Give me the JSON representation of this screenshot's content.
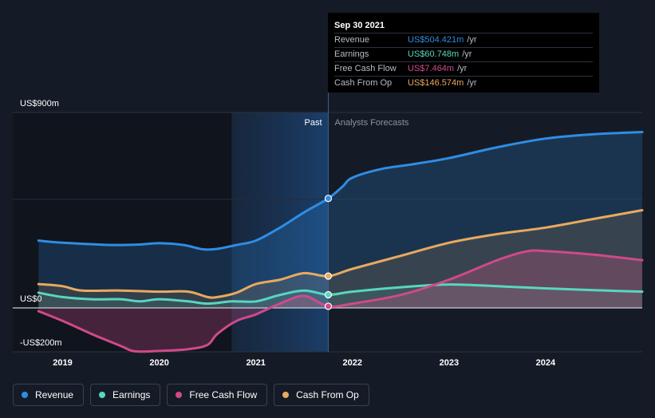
{
  "chart_data": {
    "type": "area",
    "title": "",
    "ylim": [
      -200,
      900
    ],
    "y_labels": {
      "top": "US$900m",
      "zero": "US$0",
      "bottom": "-US$200m"
    },
    "x_ticks": [
      "2019",
      "2020",
      "2021",
      "2022",
      "2023",
      "2024"
    ],
    "x_tick_values": [
      2019.0,
      2020.0,
      2021.0,
      2022.0,
      2023.0,
      2024.0
    ],
    "xlim": [
      2018.5,
      2025.0
    ],
    "past_label": "Past",
    "forecast_label": "Analysts Forecasts",
    "divider_x": 2021.75,
    "highlight_from": 2020.75,
    "series": [
      {
        "name": "Revenue",
        "color": "#2f8de4",
        "points": [
          [
            2018.75,
            310
          ],
          [
            2019.0,
            300
          ],
          [
            2019.5,
            290
          ],
          [
            2019.8,
            292
          ],
          [
            2020.0,
            298
          ],
          [
            2020.25,
            290
          ],
          [
            2020.45,
            270
          ],
          [
            2020.6,
            272
          ],
          [
            2020.8,
            290
          ],
          [
            2021.0,
            310
          ],
          [
            2021.25,
            370
          ],
          [
            2021.5,
            440
          ],
          [
            2021.75,
            504.4
          ],
          [
            2021.9,
            560
          ],
          [
            2022.0,
            600
          ],
          [
            2022.3,
            640
          ],
          [
            2022.6,
            660
          ],
          [
            2023.0,
            690
          ],
          [
            2023.5,
            740
          ],
          [
            2024.0,
            780
          ],
          [
            2024.5,
            800
          ],
          [
            2025.0,
            810
          ]
        ]
      },
      {
        "name": "Earnings",
        "color": "#58d6c0",
        "points": [
          [
            2018.75,
            70
          ],
          [
            2019.0,
            50
          ],
          [
            2019.3,
            40
          ],
          [
            2019.6,
            40
          ],
          [
            2019.8,
            30
          ],
          [
            2020.0,
            40
          ],
          [
            2020.3,
            30
          ],
          [
            2020.5,
            20
          ],
          [
            2020.75,
            30
          ],
          [
            2021.0,
            30
          ],
          [
            2021.25,
            60
          ],
          [
            2021.5,
            80
          ],
          [
            2021.75,
            60.7
          ],
          [
            2022.0,
            75
          ],
          [
            2022.5,
            95
          ],
          [
            2023.0,
            108
          ],
          [
            2023.5,
            100
          ],
          [
            2024.0,
            90
          ],
          [
            2024.5,
            82
          ],
          [
            2025.0,
            75
          ]
        ]
      },
      {
        "name": "Free Cash Flow",
        "color": "#cf4a89",
        "points": [
          [
            2018.75,
            -15
          ],
          [
            2019.0,
            -60
          ],
          [
            2019.3,
            -120
          ],
          [
            2019.6,
            -175
          ],
          [
            2019.75,
            -200
          ],
          [
            2020.0,
            -198
          ],
          [
            2020.3,
            -190
          ],
          [
            2020.5,
            -170
          ],
          [
            2020.6,
            -120
          ],
          [
            2020.8,
            -60
          ],
          [
            2021.0,
            -30
          ],
          [
            2021.25,
            20
          ],
          [
            2021.5,
            55
          ],
          [
            2021.75,
            7.5
          ],
          [
            2022.0,
            20
          ],
          [
            2022.5,
            60
          ],
          [
            2023.0,
            130
          ],
          [
            2023.5,
            220
          ],
          [
            2023.8,
            260
          ],
          [
            2024.0,
            262
          ],
          [
            2024.5,
            245
          ],
          [
            2025.0,
            220
          ]
        ]
      },
      {
        "name": "Cash From Op",
        "color": "#e9a95e",
        "points": [
          [
            2018.75,
            110
          ],
          [
            2019.0,
            100
          ],
          [
            2019.2,
            80
          ],
          [
            2019.6,
            80
          ],
          [
            2020.0,
            75
          ],
          [
            2020.3,
            75
          ],
          [
            2020.5,
            50
          ],
          [
            2020.6,
            50
          ],
          [
            2020.8,
            70
          ],
          [
            2021.0,
            110
          ],
          [
            2021.25,
            130
          ],
          [
            2021.5,
            160
          ],
          [
            2021.75,
            146.6
          ],
          [
            2022.0,
            180
          ],
          [
            2022.5,
            240
          ],
          [
            2023.0,
            300
          ],
          [
            2023.5,
            340
          ],
          [
            2024.0,
            370
          ],
          [
            2024.5,
            410
          ],
          [
            2025.0,
            450
          ]
        ]
      }
    ]
  },
  "tooltip": {
    "date": "Sep 30 2021",
    "rows": [
      {
        "label": "Revenue",
        "value": "US$504.421m",
        "unit": "/yr",
        "color": "#2f8de4"
      },
      {
        "label": "Earnings",
        "value": "US$60.748m",
        "unit": "/yr",
        "color": "#58d6c0"
      },
      {
        "label": "Free Cash Flow",
        "value": "US$7.464m",
        "unit": "/yr",
        "color": "#cf4a89"
      },
      {
        "label": "Cash From Op",
        "value": "US$146.574m",
        "unit": "/yr",
        "color": "#e9a95e"
      }
    ]
  },
  "legend": [
    {
      "label": "Revenue",
      "color": "#2f8de4"
    },
    {
      "label": "Earnings",
      "color": "#58d6c0"
    },
    {
      "label": "Free Cash Flow",
      "color": "#cf4a89"
    },
    {
      "label": "Cash From Op",
      "color": "#e9a95e"
    }
  ]
}
